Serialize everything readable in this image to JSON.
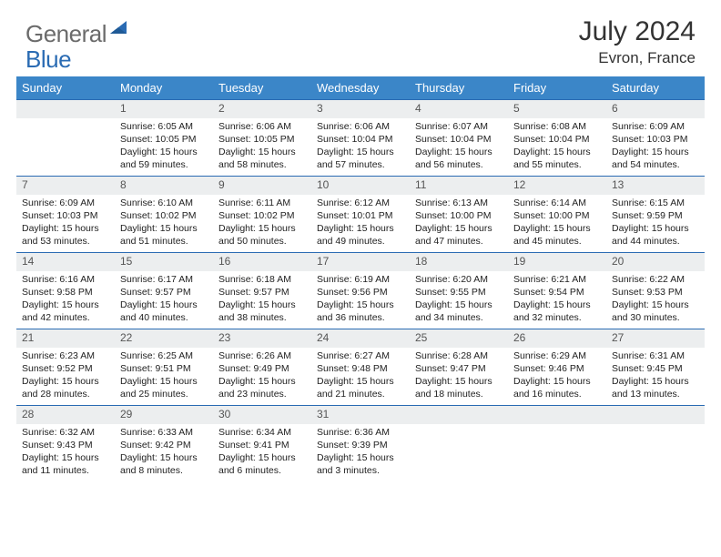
{
  "logo": {
    "general": "General",
    "blue": "Blue"
  },
  "title": "July 2024",
  "location": "Evron, France",
  "colors": {
    "header_bg": "#3b86c8",
    "header_fg": "#ffffff",
    "row_border": "#2a6bb3",
    "daynum_bg": "#eceeef",
    "logo_gray": "#6b6b6b",
    "logo_blue": "#2a6bb3"
  },
  "weekdays": [
    "Sunday",
    "Monday",
    "Tuesday",
    "Wednesday",
    "Thursday",
    "Friday",
    "Saturday"
  ],
  "weeks": [
    [
      null,
      {
        "n": "1",
        "sunrise": "6:05 AM",
        "sunset": "10:05 PM",
        "dh": "15",
        "dm": "59"
      },
      {
        "n": "2",
        "sunrise": "6:06 AM",
        "sunset": "10:05 PM",
        "dh": "15",
        "dm": "58"
      },
      {
        "n": "3",
        "sunrise": "6:06 AM",
        "sunset": "10:04 PM",
        "dh": "15",
        "dm": "57"
      },
      {
        "n": "4",
        "sunrise": "6:07 AM",
        "sunset": "10:04 PM",
        "dh": "15",
        "dm": "56"
      },
      {
        "n": "5",
        "sunrise": "6:08 AM",
        "sunset": "10:04 PM",
        "dh": "15",
        "dm": "55"
      },
      {
        "n": "6",
        "sunrise": "6:09 AM",
        "sunset": "10:03 PM",
        "dh": "15",
        "dm": "54"
      }
    ],
    [
      {
        "n": "7",
        "sunrise": "6:09 AM",
        "sunset": "10:03 PM",
        "dh": "15",
        "dm": "53"
      },
      {
        "n": "8",
        "sunrise": "6:10 AM",
        "sunset": "10:02 PM",
        "dh": "15",
        "dm": "51"
      },
      {
        "n": "9",
        "sunrise": "6:11 AM",
        "sunset": "10:02 PM",
        "dh": "15",
        "dm": "50"
      },
      {
        "n": "10",
        "sunrise": "6:12 AM",
        "sunset": "10:01 PM",
        "dh": "15",
        "dm": "49"
      },
      {
        "n": "11",
        "sunrise": "6:13 AM",
        "sunset": "10:00 PM",
        "dh": "15",
        "dm": "47"
      },
      {
        "n": "12",
        "sunrise": "6:14 AM",
        "sunset": "10:00 PM",
        "dh": "15",
        "dm": "45"
      },
      {
        "n": "13",
        "sunrise": "6:15 AM",
        "sunset": "9:59 PM",
        "dh": "15",
        "dm": "44"
      }
    ],
    [
      {
        "n": "14",
        "sunrise": "6:16 AM",
        "sunset": "9:58 PM",
        "dh": "15",
        "dm": "42"
      },
      {
        "n": "15",
        "sunrise": "6:17 AM",
        "sunset": "9:57 PM",
        "dh": "15",
        "dm": "40"
      },
      {
        "n": "16",
        "sunrise": "6:18 AM",
        "sunset": "9:57 PM",
        "dh": "15",
        "dm": "38"
      },
      {
        "n": "17",
        "sunrise": "6:19 AM",
        "sunset": "9:56 PM",
        "dh": "15",
        "dm": "36"
      },
      {
        "n": "18",
        "sunrise": "6:20 AM",
        "sunset": "9:55 PM",
        "dh": "15",
        "dm": "34"
      },
      {
        "n": "19",
        "sunrise": "6:21 AM",
        "sunset": "9:54 PM",
        "dh": "15",
        "dm": "32"
      },
      {
        "n": "20",
        "sunrise": "6:22 AM",
        "sunset": "9:53 PM",
        "dh": "15",
        "dm": "30"
      }
    ],
    [
      {
        "n": "21",
        "sunrise": "6:23 AM",
        "sunset": "9:52 PM",
        "dh": "15",
        "dm": "28"
      },
      {
        "n": "22",
        "sunrise": "6:25 AM",
        "sunset": "9:51 PM",
        "dh": "15",
        "dm": "25"
      },
      {
        "n": "23",
        "sunrise": "6:26 AM",
        "sunset": "9:49 PM",
        "dh": "15",
        "dm": "23"
      },
      {
        "n": "24",
        "sunrise": "6:27 AM",
        "sunset": "9:48 PM",
        "dh": "15",
        "dm": "21"
      },
      {
        "n": "25",
        "sunrise": "6:28 AM",
        "sunset": "9:47 PM",
        "dh": "15",
        "dm": "18"
      },
      {
        "n": "26",
        "sunrise": "6:29 AM",
        "sunset": "9:46 PM",
        "dh": "15",
        "dm": "16"
      },
      {
        "n": "27",
        "sunrise": "6:31 AM",
        "sunset": "9:45 PM",
        "dh": "15",
        "dm": "13"
      }
    ],
    [
      {
        "n": "28",
        "sunrise": "6:32 AM",
        "sunset": "9:43 PM",
        "dh": "15",
        "dm": "11"
      },
      {
        "n": "29",
        "sunrise": "6:33 AM",
        "sunset": "9:42 PM",
        "dh": "15",
        "dm": "8"
      },
      {
        "n": "30",
        "sunrise": "6:34 AM",
        "sunset": "9:41 PM",
        "dh": "15",
        "dm": "6"
      },
      {
        "n": "31",
        "sunrise": "6:36 AM",
        "sunset": "9:39 PM",
        "dh": "15",
        "dm": "3"
      },
      null,
      null,
      null
    ]
  ]
}
